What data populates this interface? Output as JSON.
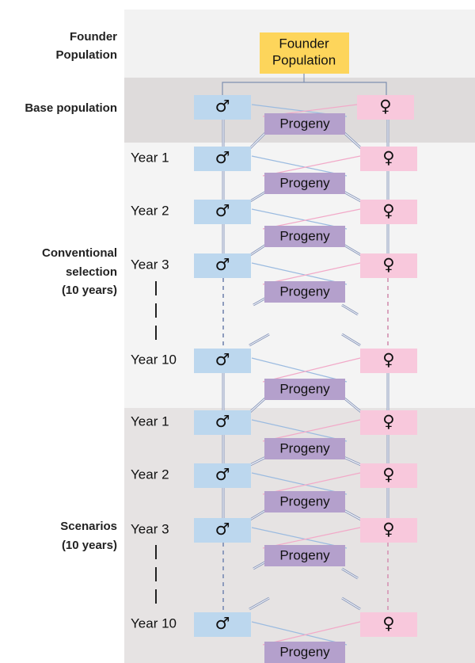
{
  "sections": [
    {
      "label": [
        "Founder",
        "Population"
      ]
    },
    {
      "label": [
        "Base population"
      ]
    },
    {
      "label": [
        "Conventional",
        "selection",
        "(10 years)"
      ]
    },
    {
      "label": [
        "Scenarios",
        "(10 years)"
      ]
    }
  ],
  "founder": [
    "Founder",
    "Population"
  ],
  "rows": [
    {
      "male": "♂",
      "female": "♀",
      "progeny": "Progeny"
    },
    {
      "year": "Year 1",
      "male": "♂",
      "female": "♀",
      "progeny": "Progeny"
    },
    {
      "year": "Year 2",
      "male": "♂",
      "female": "♀",
      "progeny": "Progeny"
    },
    {
      "year": "Year 3",
      "male": "♂",
      "female": "♀",
      "progeny": "Progeny"
    },
    {
      "year": "Year 10",
      "male": "♂",
      "female": "♀",
      "progeny": "Progeny"
    },
    {
      "year": "Year 1",
      "male": "♂",
      "female": "♀",
      "progeny": "Progeny"
    },
    {
      "year": "Year 2",
      "male": "♂",
      "female": "♀",
      "progeny": "Progeny"
    },
    {
      "year": "Year 3",
      "male": "♂",
      "female": "♀",
      "progeny": "Progeny"
    },
    {
      "year": "Year 10",
      "male": "♂",
      "female": "♀",
      "progeny": "Progeny"
    }
  ]
}
